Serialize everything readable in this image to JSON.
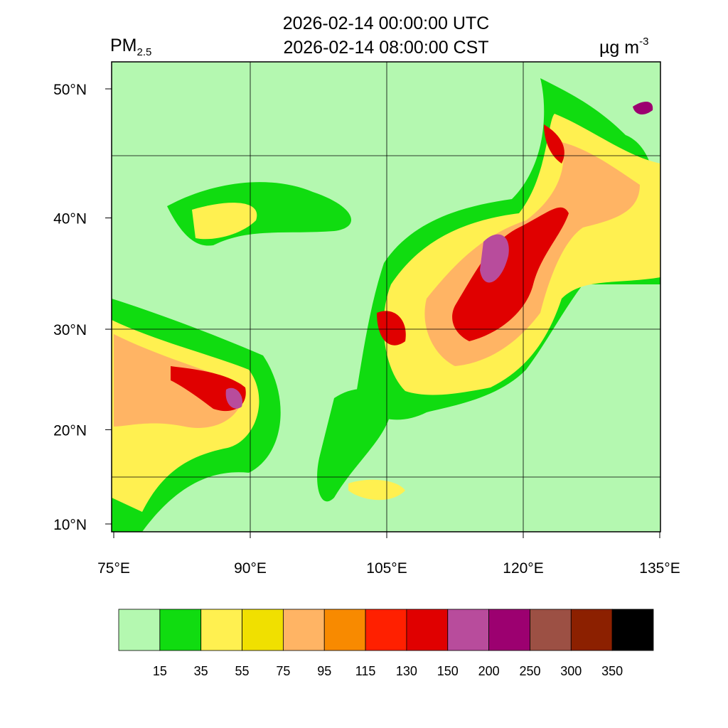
{
  "header": {
    "title_lines": [
      "2026-02-14 00:00:00 UTC",
      "2026-02-14 08:00:00 CST"
    ],
    "variable": {
      "main": "PM",
      "sub": "2.5"
    },
    "units": {
      "main": "µg m",
      "sup": "-3"
    }
  },
  "map": {
    "lon_ticks": [
      {
        "value": 75,
        "label": "75°E"
      },
      {
        "value": 90,
        "label": "90°E"
      },
      {
        "value": 105,
        "label": "105°E"
      },
      {
        "value": 120,
        "label": "120°E"
      },
      {
        "value": 135,
        "label": "135°E"
      }
    ],
    "lat_ticks": [
      {
        "value": 10,
        "label": "10°N"
      },
      {
        "value": 20,
        "label": "20°N"
      },
      {
        "value": 30,
        "label": "30°N"
      },
      {
        "value": 40,
        "label": "40°N"
      },
      {
        "value": 50,
        "label": "50°N"
      }
    ]
  },
  "colorbar": {
    "levels": [
      15,
      35,
      55,
      75,
      95,
      115,
      130,
      150,
      200,
      250,
      300,
      350
    ],
    "colors": [
      "#b4f8b0",
      "#10dc10",
      "#fff050",
      "#f0e000",
      "#ffb464",
      "#f88a00",
      "#ff2000",
      "#e00000",
      "#b84c9c",
      "#9c0070",
      "#9c5044",
      "#8c2000",
      "#000000"
    ]
  }
}
